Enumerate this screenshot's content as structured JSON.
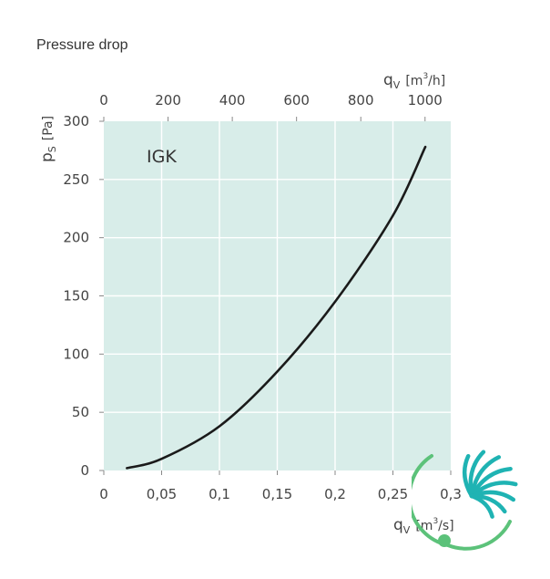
{
  "page": {
    "title": "Pressure drop"
  },
  "chart_data": {
    "type": "line",
    "title": "",
    "curve_label": "IGK",
    "x": [
      0.02,
      0.05,
      0.1,
      0.15,
      0.2,
      0.25,
      0.278
    ],
    "series": [
      {
        "name": "IGK",
        "values": [
          2,
          10,
          38,
          85,
          145,
          219,
          278
        ]
      }
    ],
    "xlim": [
      0,
      0.3
    ],
    "ylim": [
      0,
      300
    ],
    "x_ticks": [
      0,
      0.05,
      0.1,
      0.15,
      0.2,
      0.25,
      0.3
    ],
    "x_tick_labels": [
      "0",
      "0,05",
      "0,1",
      "0,15",
      "0,2",
      "0,25",
      "0,3"
    ],
    "y_ticks": [
      0,
      50,
      100,
      150,
      200,
      250,
      300
    ],
    "y_tick_labels": [
      "0",
      "50",
      "100",
      "150",
      "200",
      "250",
      "300"
    ],
    "top_axis": {
      "unit": "m3/h",
      "ticks": [
        0,
        200,
        400,
        600,
        800,
        1000
      ],
      "tick_labels": [
        "0",
        "200",
        "400",
        "600",
        "800",
        "1000"
      ],
      "lim": [
        0,
        1080
      ]
    },
    "xlabel": {
      "symbol": "q",
      "subscript": "V",
      "unit_open": "[m",
      "unit_sup": "3",
      "unit_close": "/s]"
    },
    "x2label": {
      "symbol": "q",
      "subscript": "V",
      "unit_open": "[m",
      "unit_sup": "3",
      "unit_close": "/h]"
    },
    "ylabel": {
      "symbol": "p",
      "subscript": "S",
      "unit": "[Pa]"
    },
    "grid": true,
    "colors": {
      "plot_background": "#d8ede9",
      "grid": "#ffffff",
      "curve": "#1a1a1a",
      "logo_teal": "#1fb3b3",
      "logo_green": "#5cc27a"
    }
  }
}
